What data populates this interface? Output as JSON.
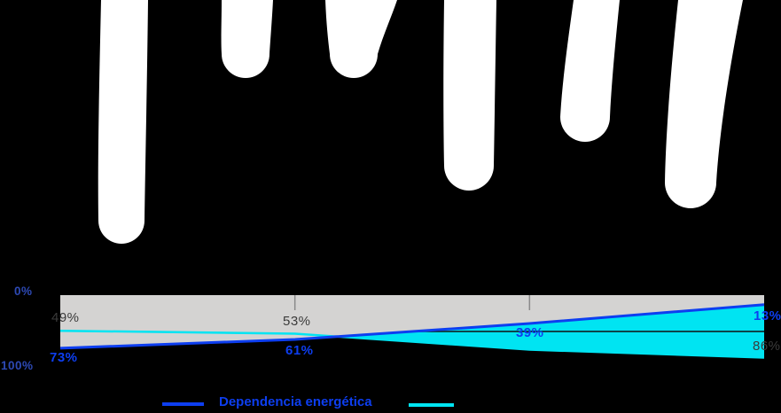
{
  "chart_data": {
    "type": "line",
    "x_count": 4,
    "series": [
      {
        "name": "Dependencia energética",
        "color": "#0d3ef0",
        "values": [
          73,
          61,
          39,
          13
        ],
        "point_labels": [
          "73%",
          "61%",
          "39%",
          "13%"
        ]
      },
      {
        "name": "",
        "color": "#00e4f2",
        "values": [
          49,
          53,
          75,
          86
        ],
        "point_labels": [
          "49%",
          "53%",
          "",
          "86%"
        ]
      }
    ],
    "y_axis": {
      "min_label": "0%",
      "max_label": "100%",
      "inverted": true,
      "range": [
        0,
        100
      ]
    },
    "midline_value": 50,
    "grid": "off",
    "legend_position": "bottom",
    "plot_bg": "#d4d3d2",
    "area_fill_between_lines": "#00e4f2",
    "colors": {
      "background": "#000000",
      "drips": "#ffffff",
      "tick": "#8a8a8a",
      "midline": "#111111",
      "axis_label": "#2d49b4",
      "dark_label": "#3b3b3b"
    }
  },
  "legend": {
    "items": [
      {
        "label": "Dependencia energética",
        "color": "#0d3ef0"
      },
      {
        "label": "",
        "color": "#00e4f2"
      }
    ]
  }
}
